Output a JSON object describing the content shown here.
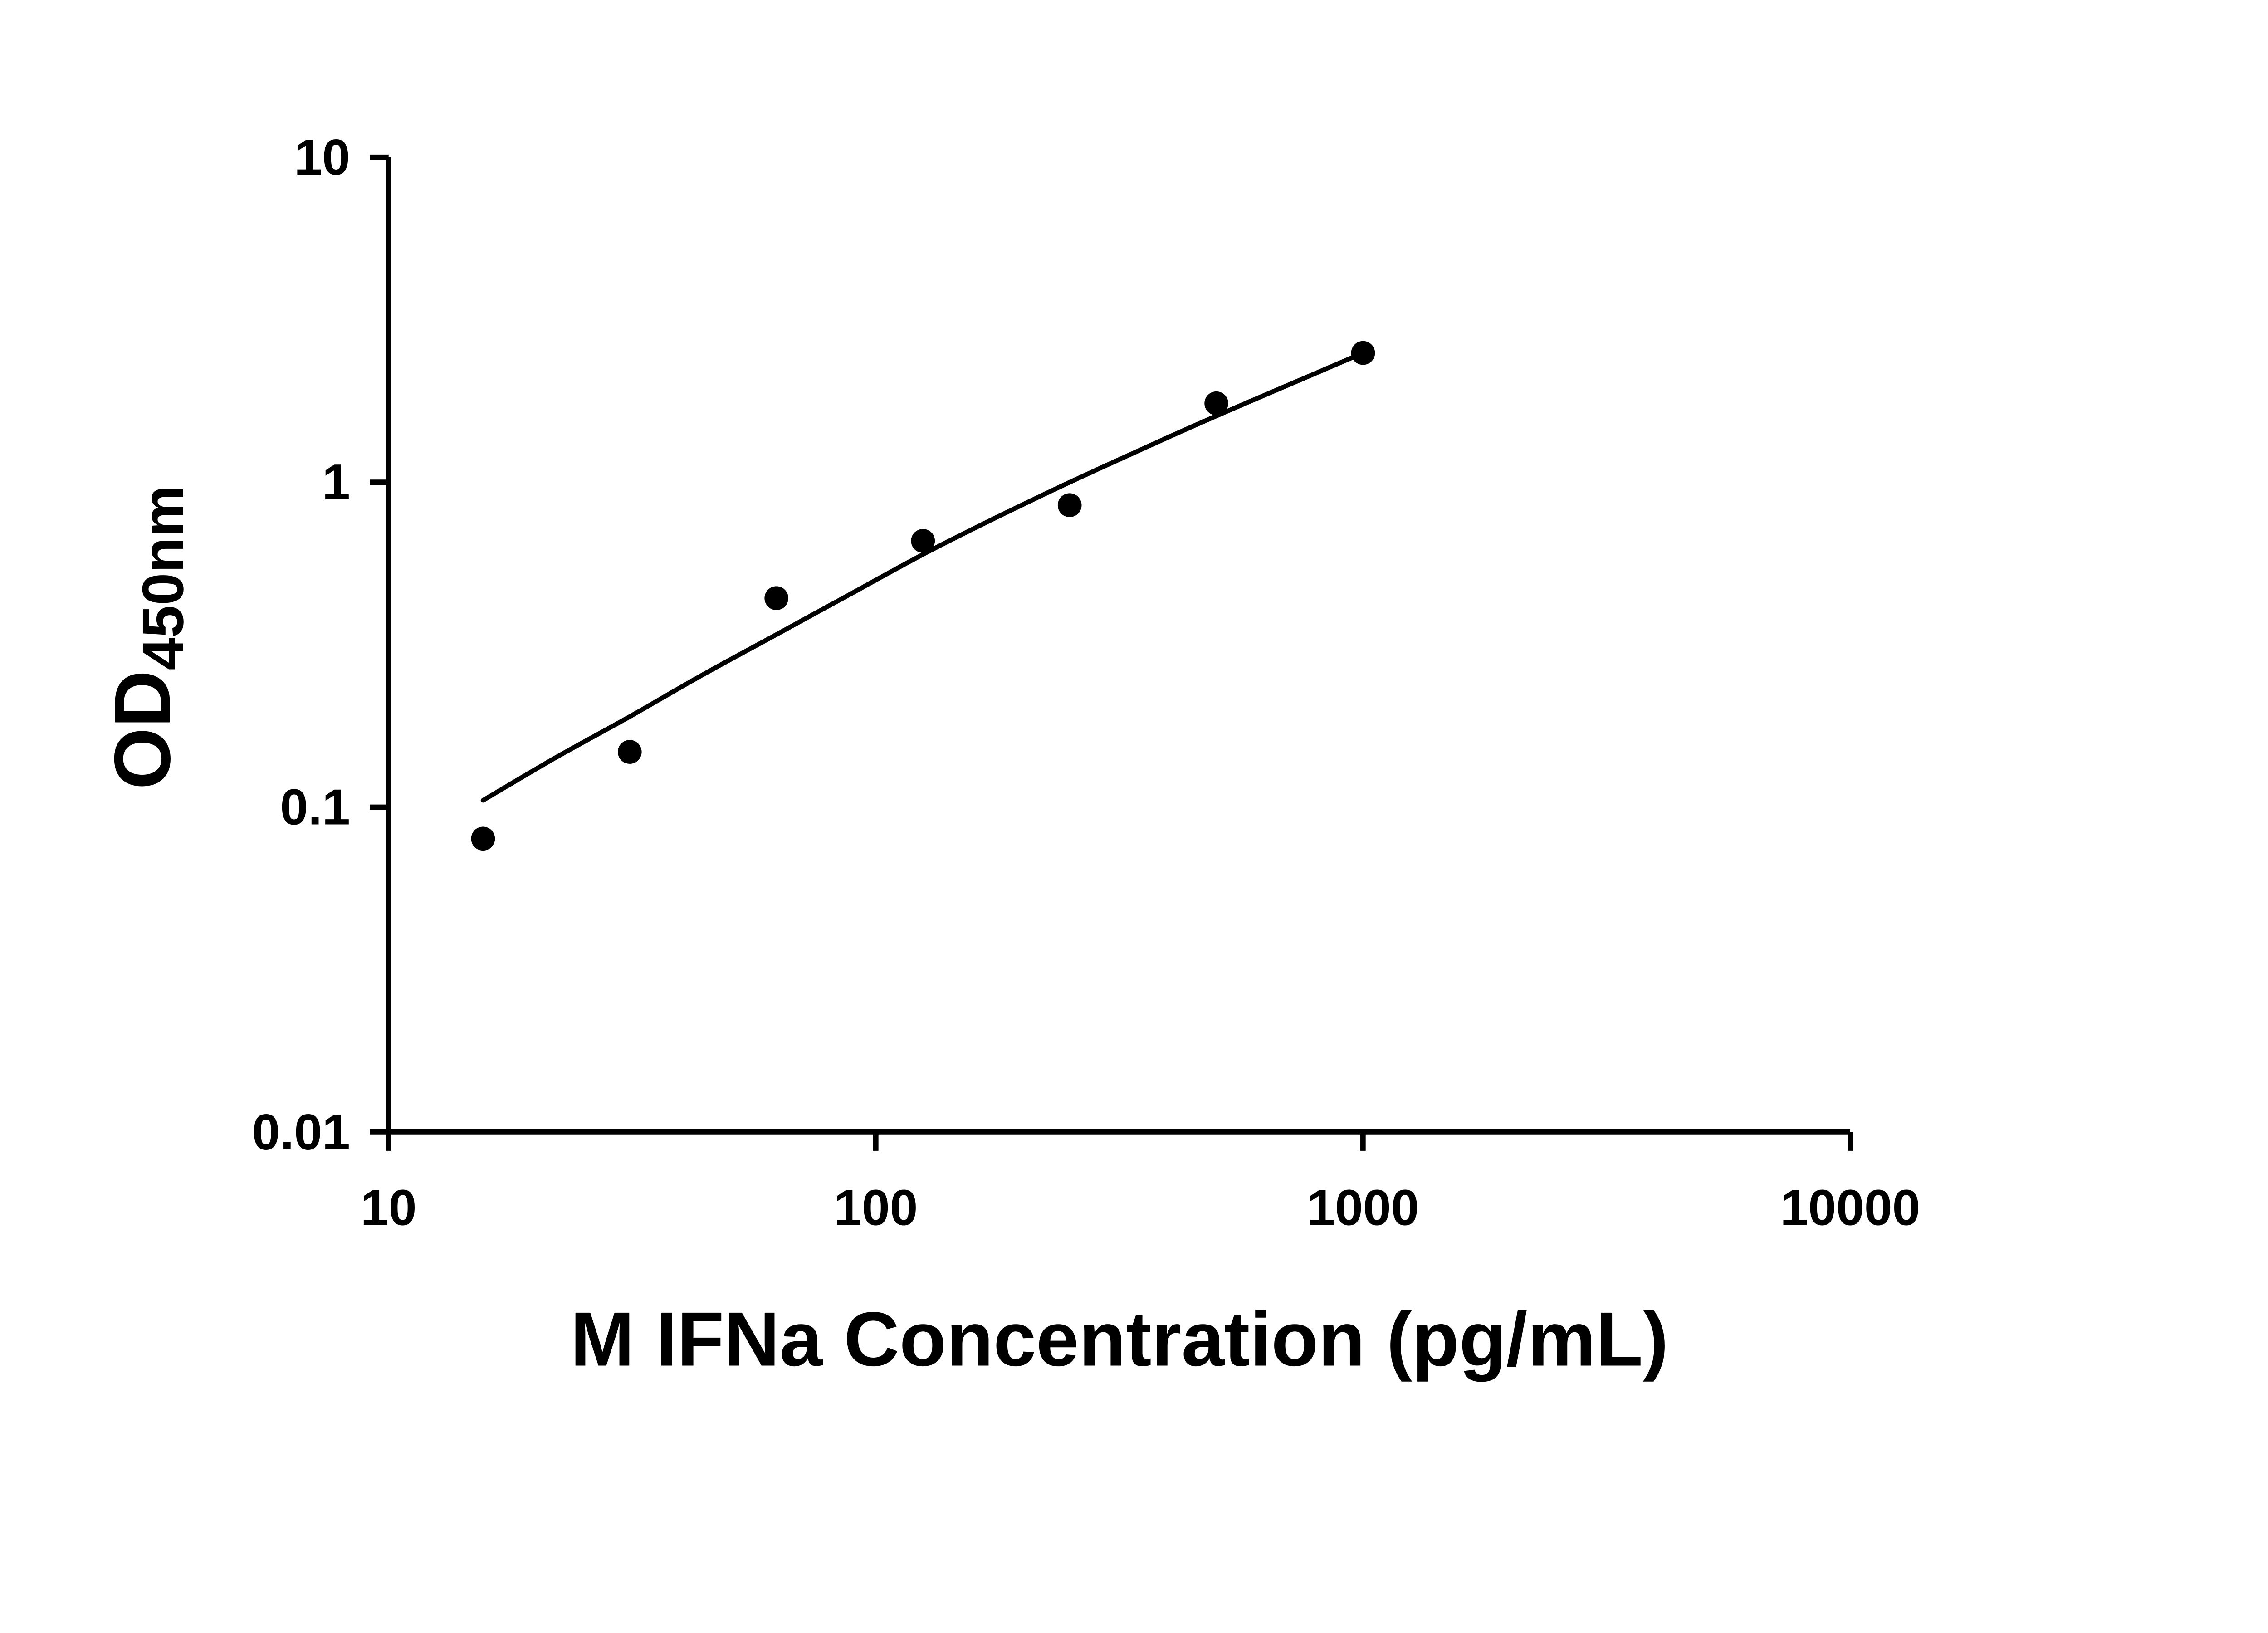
{
  "figure": {
    "background": "#ffffff",
    "axis_color": "#000000",
    "point_color": "#000000",
    "curve_color": "#000000"
  },
  "chart_data": {
    "type": "scatter",
    "title": "",
    "xlabel": "M IFNa Concentration (pg/mL)",
    "ylabel_main": "OD",
    "ylabel_sub": "450nm",
    "x_scale": "log",
    "y_scale": "log",
    "xlim": [
      10,
      10000
    ],
    "ylim": [
      0.01,
      10
    ],
    "grid": "off",
    "legend": "none",
    "x_ticks": [
      10,
      100,
      1000,
      10000
    ],
    "x_tick_labels": [
      "10",
      "100",
      "1000",
      "10000"
    ],
    "y_ticks": [
      0.01,
      0.1,
      1,
      10
    ],
    "y_tick_labels": [
      "0.01",
      "0.1",
      "1",
      "10"
    ],
    "points": [
      {
        "x": 15.625,
        "y": 0.08
      },
      {
        "x": 31.25,
        "y": 0.148
      },
      {
        "x": 62.5,
        "y": 0.44
      },
      {
        "x": 125,
        "y": 0.66
      },
      {
        "x": 250,
        "y": 0.85
      },
      {
        "x": 500,
        "y": 1.75
      },
      {
        "x": 1000,
        "y": 2.5
      }
    ],
    "fit_curve": [
      {
        "x": 15.625,
        "y": 0.105
      },
      {
        "x": 22,
        "y": 0.142
      },
      {
        "x": 31.25,
        "y": 0.19
      },
      {
        "x": 44,
        "y": 0.255
      },
      {
        "x": 62.5,
        "y": 0.34
      },
      {
        "x": 88,
        "y": 0.45
      },
      {
        "x": 125,
        "y": 0.6
      },
      {
        "x": 177,
        "y": 0.78
      },
      {
        "x": 250,
        "y": 1.0
      },
      {
        "x": 354,
        "y": 1.27
      },
      {
        "x": 500,
        "y": 1.6
      },
      {
        "x": 707,
        "y": 2.0
      },
      {
        "x": 1000,
        "y": 2.5
      }
    ]
  }
}
